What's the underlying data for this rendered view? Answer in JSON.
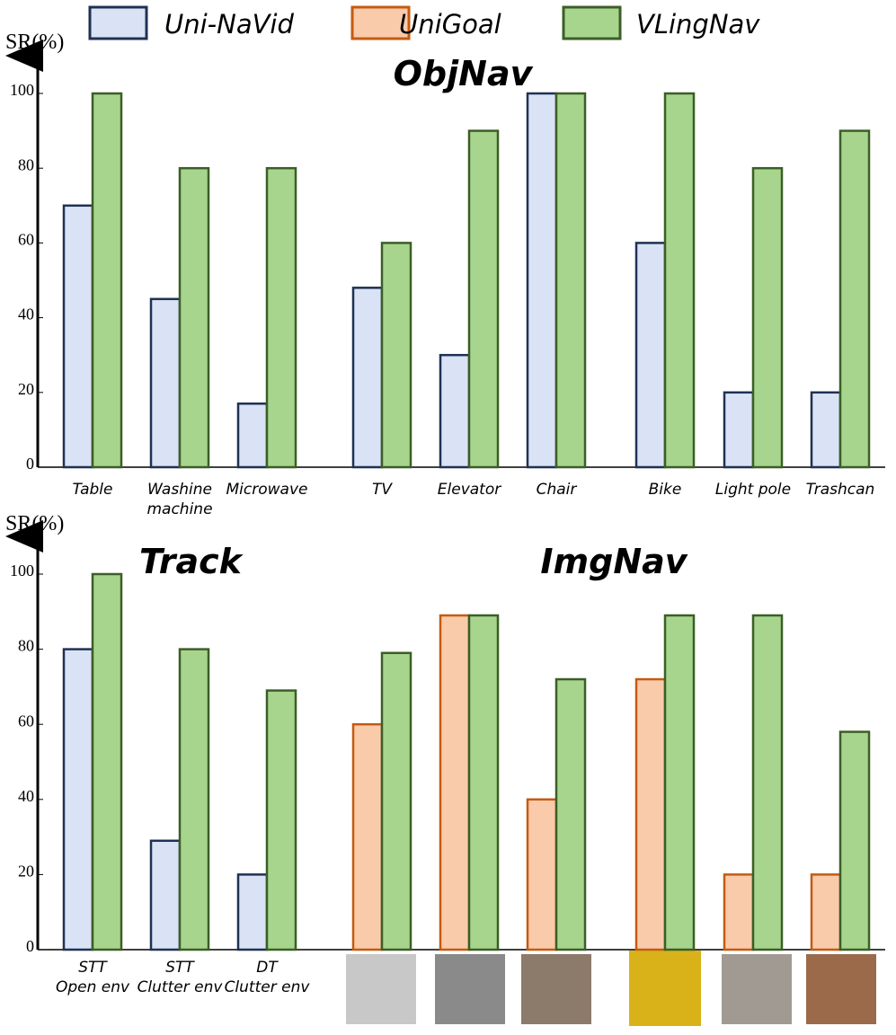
{
  "legend": [
    {
      "name": "Uni-NaVid",
      "fill": "#dae3f5",
      "stroke": "#1f3154"
    },
    {
      "name": "UniGoal",
      "fill": "#f9cbab",
      "stroke": "#c55a11"
    },
    {
      "name": "VLingNav",
      "fill": "#a8d58e",
      "stroke": "#3b5e26"
    }
  ],
  "chart_data": [
    {
      "type": "bar",
      "title": "ObjNav",
      "ylabel": "SR(%)",
      "ylim": [
        0,
        100
      ],
      "yticks": [
        0,
        20,
        40,
        60,
        80,
        100
      ],
      "categories": [
        "Table",
        "Washine\nmachine",
        "Microwave",
        "TV",
        "Elevator",
        "Chair",
        "Bike",
        "Light pole",
        "Trashcan"
      ],
      "series": [
        {
          "legend": 0,
          "values": [
            70,
            45,
            17,
            48,
            30,
            100,
            60,
            20,
            20
          ]
        },
        {
          "legend": 2,
          "values": [
            100,
            80,
            80,
            60,
            90,
            100,
            100,
            80,
            90
          ]
        }
      ]
    },
    {
      "type": "bar",
      "titles": [
        "Track",
        "ImgNav"
      ],
      "ylabel": "SR(%)",
      "ylim": [
        0,
        100
      ],
      "yticks": [
        0,
        20,
        40,
        60,
        80,
        100
      ],
      "categories": [
        "STT\nOpen env",
        "STT\nClutter env",
        "DT\nClutter env",
        null,
        null,
        null,
        null,
        null,
        null
      ],
      "series": [
        {
          "legend": 0,
          "values": [
            80,
            29,
            20,
            null,
            null,
            null,
            null,
            null,
            null
          ]
        },
        {
          "legend": 1,
          "values": [
            null,
            null,
            null,
            60,
            89,
            40,
            72,
            20,
            20
          ]
        },
        {
          "legend": 2,
          "values": [
            100,
            80,
            69,
            79,
            89,
            72,
            89,
            89,
            58
          ]
        }
      ]
    }
  ]
}
